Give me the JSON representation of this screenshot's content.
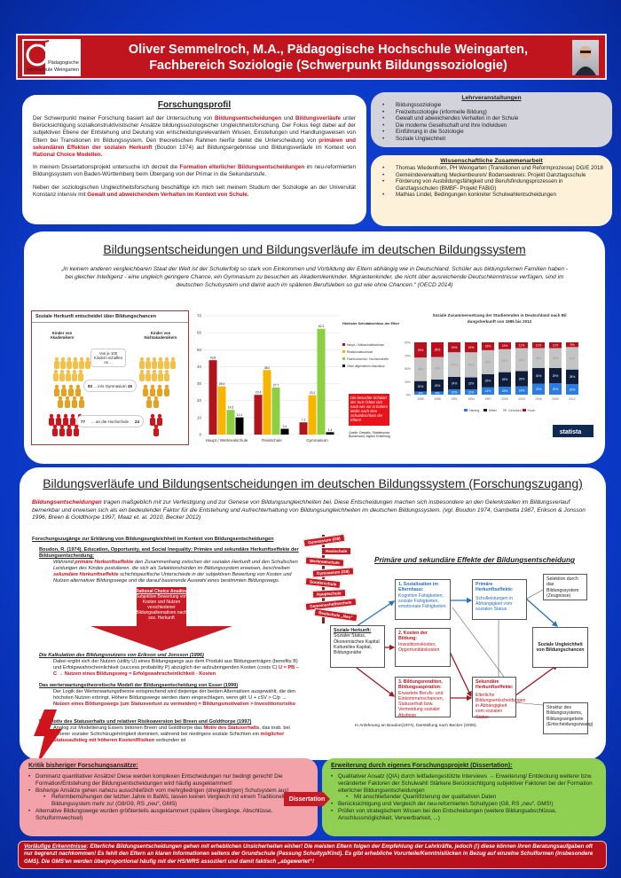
{
  "header": {
    "title_line1": "Oliver Semmelroch, M.A., Pädagogische Hochschule Weingarten,",
    "title_line2": "Fachbereich Soziologie (Schwerpunkt Bildungssoziologie)",
    "logo_text_1": "Pädagogische",
    "logo_text_2": "Hochschule Weingarten"
  },
  "profil": {
    "title": "Forschungsprofil",
    "paragraphs": [
      [
        {
          "t": "Der Schwerpunkt meiner Forschung basiert auf der Untersuchung von "
        },
        {
          "t": "Bildungsentscheidungen",
          "hl": true
        },
        {
          "t": " und "
        },
        {
          "t": "Bildungsverläufe",
          "hl": true
        },
        {
          "t": " unter Berücksichtigung sozialkonstruktivistischer Ansätze bildungssoziologischer Ungleichheitsforschung. Der Fokus liegt dabei auf der subjektiven Ebene der Entstehung und Deutung von entscheidungsrelevantem Wissen, Einstellungen und Handlungsweisen von Eltern bei Transitionen im Bildungssystem. Den theoretischen Rahmen hierfür bietet die Unterscheidung von "
        },
        {
          "t": "primären und sekundären Effekten der sozialen Herkunft",
          "hl": true
        },
        {
          "t": " (Boudon 1974) auf Bildungsergebnisse und Bildungsverläufe im Kontext von "
        },
        {
          "t": "Rational Choice Modellen.",
          "hl": true
        }
      ],
      [
        {
          "t": "In meinem Dissertationsprojekt untersuche ich derzeit die "
        },
        {
          "t": "Formation elterlicher Bildungsentscheidungen",
          "hl": true
        },
        {
          "t": " im neu-reformierten Bildungssystem von Baden-Württemberg beim Übergang von der Primar in die Sekundarstufe."
        }
      ],
      [
        {
          "t": "Neben der soziologischen Ungleichheitsforschung beschäftige ich mich seit meinem Studium der Soziologie an der Universität Konstanz intensiv mit "
        },
        {
          "t": "Gewalt und abweichendem Verhalten im Kontext von Schule.",
          "hl": true
        }
      ]
    ]
  },
  "lehre": {
    "title": "Lehrveranstaltungen",
    "items": [
      "Bildungssoziologie",
      "Freizeitsoziologie (informelle Bildung)",
      "Gewalt und abweichendes Verhalten in der Schule",
      "Die moderne Gesellschaft und ihre Individuen",
      "Einführung in die Soziologie",
      "Soziale Ungleichheit"
    ]
  },
  "zusammenarbeit": {
    "title": "Wissenschaftliche Zusammenarbeit",
    "items": [
      "Thomas Wiedenhorn, PH Weingarten (Transitionen und Reformprozesse) DG/E 2018",
      "Gemeindeverwaltung Meckenbeuren/ Bodenseekreis: Projekt Ganztagsschule",
      "Förderung von Ausbildungsfähigkeit und Berufsfindungsprozessen in Ganztagsschulen (BMBF- Projekt FABiG)",
      "Mathias Lindel, Bedingungen konkreter Schulwahlentscheidungen"
    ]
  },
  "mid": {
    "title": "Bildungsentscheidungen und Bildungsverläufe im deutschen Bildungssystem",
    "quote": "„In keinem anderen vergleichbaren Staat der Welt ist der Schulerfolg so stark von Einkommen und Vorbildung der Eltern abhängig wie in Deutschland. Schüler aus bildungsfernen Familien haben - bei gleicher Intelligenz - eine ungleich geringere Chance, ein Gymnasium zu besuchen als Akademikerkinder. Migrantenkinder, die nicht über ausreichende Deutschkenntnisse verfügen, sind im deutschen Schulsystem und damit auch im späteren Berufsleben so gut wie ohne Chancen.“ (OECD 2014)"
  },
  "infographic": {
    "title": "Soziale Herkunft entscheidet über Bildungschancen",
    "left_label": "Kinder von Akademikern",
    "right_label": "Kinder von Nichtakademikern",
    "center_label": "Von je 100 Kindern schaffen es ...",
    "row1": {
      "left": "83",
      "label": "... in/s Gymnasium",
      "right": "45"
    },
    "row2": {
      "left": "77",
      "label": "... an die Hochschule",
      "right": "24"
    }
  },
  "chart_data": [
    {
      "type": "bar",
      "categories": [
        "Haupt / Werkrealschule",
        "Realschule",
        "Gymnasium"
      ],
      "legend_title": "Höchster Schulabschluss der Eltern:",
      "series": [
        {
          "name": "Haupt-/ Volksschulabschluss",
          "color": "#b0141c",
          "values": [
            43.8,
            23.4,
            7.2
          ]
        },
        {
          "name": "Realschulabschluss",
          "color": "#f7b500",
          "values": [
            28.4,
            38.0,
            23.2
          ]
        },
        {
          "name": "Fachhochschul-/ Hochschulreife",
          "color": "#8ccf40",
          "values": [
            14.5,
            27.7,
            62.3
          ]
        },
        {
          "name": "Ohne allgemeinen Abschluss",
          "color": "#000000",
          "values": [
            10.1,
            3.4,
            1.4
          ]
        }
      ],
      "ylim": [
        0,
        70
      ],
      "yticks": [
        0,
        10,
        20,
        30,
        40,
        50,
        60,
        70
      ],
      "grid": true,
      "legend": "right",
      "note": "Die besuchte Schulart der SuS richtet sich nach wie vor in hohem Maße nach dem Schulabschluss der Eltern!",
      "source": "Quelle: Destatis, Statistisches Bundesamt, eigene Erstellung"
    },
    {
      "type": "bar",
      "stacked": true,
      "title": "Soziale Zusammensetzung der Studierenden in Deutschland nach Bildungsherkunft von 1985 bis 2012",
      "categories": [
        "1985",
        "1988",
        "1991",
        "1994",
        "1997",
        "2000",
        "2003",
        "2006",
        "2009",
        "2012"
      ],
      "series": [
        {
          "name": "Niedrig",
          "color": "#2a7de0",
          "values": [
            6,
            6,
            10,
            10,
            14,
            15,
            16,
            21,
            22,
            20
          ]
        },
        {
          "name": "Mittel",
          "color": "#0e1e3c",
          "values": [
            20,
            23,
            24,
            23,
            25,
            28,
            29,
            30,
            29,
            28
          ]
        },
        {
          "name": "Gehoben",
          "color": "#c4c4c4",
          "values": [
            45,
            43,
            47,
            48,
            46,
            44,
            44,
            38,
            38,
            43
          ]
        },
        {
          "name": "Hoch",
          "color": "#b8101c",
          "values": [
            29,
            28,
            19,
            19,
            15,
            13,
            11,
            11,
            11,
            9
          ]
        }
      ],
      "ylim": [
        0,
        100
      ],
      "yticks": [
        "0%",
        "25%",
        "50%",
        "75%",
        "100%"
      ],
      "legend": "bottom",
      "brand": "statista"
    }
  ],
  "low": {
    "title": "Bildungsverläufe und Bildungsentscheidungen im deutschen Bildungssystem (Forschungszugang)",
    "intro": [
      {
        "t": "Bildungsentscheidungen",
        "hl": true
      },
      {
        "t": " tragen maßgeblich mit zur Verfestigung und zur Genese von Bildungsungleichheiten bei. Diese Entscheidungen machen sich insbesondere an den Gelenkstellen im Bildungsverlauf bemerkbar und erweisen sich als ein bedeutender Faktor für die Entstehung und Aufrechterhaltung von Bildungsungleichheiten im deutschen Bildungssystem. (vgl. Boudon 1974, Gambetta 1987, Erikson & Jonsson 1996, Breen & Goldthorpe 1997, Maaz et. al. 2010, Becker 2012)"
      }
    ],
    "subheading": "Forschungszugänge zur Erklärung von Bildungsungleichheit im Kontext von Bildungsentscheidungen",
    "approaches": [
      {
        "heading": "Boudon, R. (1974). Education, Opportunity, and Social Inequality: Primäre und sekundäre Herkunftseffekte der Bildungsentscheidung:",
        "text": [
          {
            "t": "Während "
          },
          {
            "t": "primäre Herkunftseffekte",
            "hl": true
          },
          {
            "t": " den Zusammenhang zwischen der sozialen Herkunft und den Schulischen Leistungen des Kindes postulieren, die sich als Selektionshürden im Bildungssystem erweisen, beschreiben "
          },
          {
            "t": "sekundäre Herkunftseffekte",
            "hl": true
          },
          {
            "t": " schichtspezifische Unterschiede in der subjektiven Bewertung von Kosten und Nutzen alternativer Bildungswege und die darauf basierende Auswahl eines bestimmten Bildungswegs."
          }
        ]
      },
      {
        "heading": "Die Kalkulation des Bildungsnutzens von Erikson und Jonsson (1996)",
        "text": [
          {
            "t": "Dabei ergibt sich der Nutzen (utility U) eines Bildungsgangs aus dem Produkt aus Bildungserträgen (benefits B) und Erfolgswahrscheinlichkeit (success probability P) abzüglich der aufzubringenden Kosten (costs C) "
          },
          {
            "t": "U = PB – C → Nutzen eines Bildungsweg = Erfolgswahrscheinlichkeit - Kosten",
            "hl": true
          }
        ]
      },
      {
        "heading": "Das werterwartungstheoretische Modell der Bildungsentscheidung von Esser (1999)",
        "text": [
          {
            "t": "Der Logik der Werterwartungstheorie entsprechend wird diejenige der beiden Alternativen ausgewählt, die den höchsten Nutzen erbringt. Höhere Bildungswege werden dann eingeschlagen, wenn gilt: U + cSV > C/p → "
          },
          {
            "t": "Nutzen eines Bildungswegs (um Statusverlust zu vermeiden) = Bildungsmotivation > Investitionsrisiko",
            "hl": true
          }
        ]
      },
      {
        "heading": "Das Motiv des Statuserhalts und relativer Risikoaversion bei Breen und Goldthorpe (1997)",
        "text": [
          {
            "t": "Analog zur Modellierung Essers betonen Breen und Goldthorpe das "
          },
          {
            "t": "Motiv des Statuserhalts",
            "hl": true
          },
          {
            "t": ", das insb. bei höherer sozialer Schichtzugehörigkeit dominiert, während bei niedrigere soziale Schichten ein "
          },
          {
            "t": "möglicher Statusaufstieg mit höheren Kosten/Risiken",
            "hl": true
          },
          {
            "t": " verbunden ist"
          }
        ]
      }
    ],
    "rc_arrow": {
      "title": "Rational Choice Ansätze",
      "text": "Subjektive Bewertung von Kosten und Nutzen verschiedener Bildungsalternativen nach soz. Herkunft"
    },
    "signposts": [
      "Gymnasium (G8)",
      "Realschule",
      "Werkrealschule",
      "Gymnasium (G9)",
      "Sonderschule",
      "Hauptschule",
      "Gemeinschaftsschule",
      "Realschule „Neu“"
    ]
  },
  "diagram": {
    "title": "Primäre und sekundäre Effekte der Bildungsentscheidung",
    "herkunft": {
      "title": "Soziale Herkunft:",
      "items": [
        "Sozialer Status, Ökonomisches Kapital",
        "Kulturelles Kapital, Bildungsnähe"
      ]
    },
    "sozialisation": {
      "title": "1. Sozialisation im Elternhaus:",
      "text": "Kognitive Fähigkeiten, soziale Fähigkeiten, emotionale Fähigkeiten"
    },
    "kosten": {
      "title": "2. Kosten der Bildung:",
      "text": "Investitionskosten, Opportunitätskosten"
    },
    "renditen": {
      "title": "3. Bildungsrenditen, Bildungsaspiration:",
      "text": "Erwartete Berufs- und Einkommenschancen, Statuserhalt bzw. Vermeidung sozialer Abstiege"
    },
    "primaer": {
      "title": "Primäre Herkunftseffekte:",
      "text": "Schulleistungen in Abhängigkeit vom sozialen Status"
    },
    "sekundaer": {
      "title": "Sekundäre Herkunftseffekte:",
      "text": "Elterliche Bildungsentscheidungen in Abhängigkeit vom sozialen Status"
    },
    "selektion": "Selektion durch das Bildungssystem (Zeugnisse)",
    "ungleichheit": "Soziale Ungleichheit von Bildungschancen",
    "struktur": "Struktur des Bildungssystems, Bildungsangebote (Entscheidungszwang)",
    "caption": "In Anlehnung an Boudon(1974), Darstellung nach Becker (2009)."
  },
  "kritik": {
    "title": "Kritik bisheriger Forschungsansätze:",
    "items": [
      {
        "t": "Dominanz quantitativer Ansätze! Diese werden komplexen Entscheidungen nur bedingt gerecht! Die Formation/Entstehung der Bildungsentscheidungen wird häufig ausgeklammert!"
      },
      {
        "t": "Bisherige Ansätze gehen nahezu ausschließlich vom mehrgliedrigen (dreigliedrigen) Schulsystem aus!"
      },
      {
        "t": "Reformbemühungen der letzten Jahre in BaWü, lassen keinen Vergleich mit einem Traditionellen Bildungssystem mehr zu! (G8/G9, RS „neu“, GMS)",
        "sub": true
      },
      {
        "t": "Alternative Bildungswege wurden größtenteils ausgeklammert (spätere Übergänge, Abschlüsse, Schulformwechsel)"
      }
    ]
  },
  "dissertation_label": "Dissertation",
  "erweiterung": {
    "title": "Erweiterung durch eigenes Forschungsprojekt (Dissertation):",
    "items": [
      {
        "t": "Qualitativer Ansatz (QIA) durch leitfadengestützte Interviews → Erweiterung/ Entdeckung weiterer bzw. veränderter Faktoren der Schulwahl! Stärkere Berücksichtigung subjektiver Faktoren bei der Formation elterlicher Bildungsentscheidungen"
      },
      {
        "t": "Mit anschließender Quantifizierung der qualitativen Daten",
        "sub": true
      },
      {
        "t": "Berücksichtigung und Vergleich der neu-reformierten Schultypen (G8, RS „neu“, GMS!)"
      },
      {
        "t": "Prüfen von strategischem Wissen bei den Entscheidungen (weitere Bildungsabschlüsse, Anschlussmöglichkeit, Verwertbarkeit, ...)"
      }
    ]
  },
  "fazit": {
    "label": "Vorläufige Erkenntnisse",
    "text": ": Elterliche Bildungsentscheidungen gehen mit erheblichen Unsicherheiten einher! Die meisten Eltern folgen der Empfehlung der Lehrkräfte, jedoch (!) diese können ihren Beratungsaufgaben oft nur begrenzt nachkommen! Es fehlt den Eltern an klaren Informationen seitens der Grundschule (Passung Schultyp/Kind). Es gibt erhebliche Vorurteile/Kenntnislücken in Bezug auf einzelne Schulformen (insbesondere GMS). Die GMS'en werden überproportional häufig mit der HS/WRS assoziiert und damit faktisch „abgewertet“!"
  }
}
